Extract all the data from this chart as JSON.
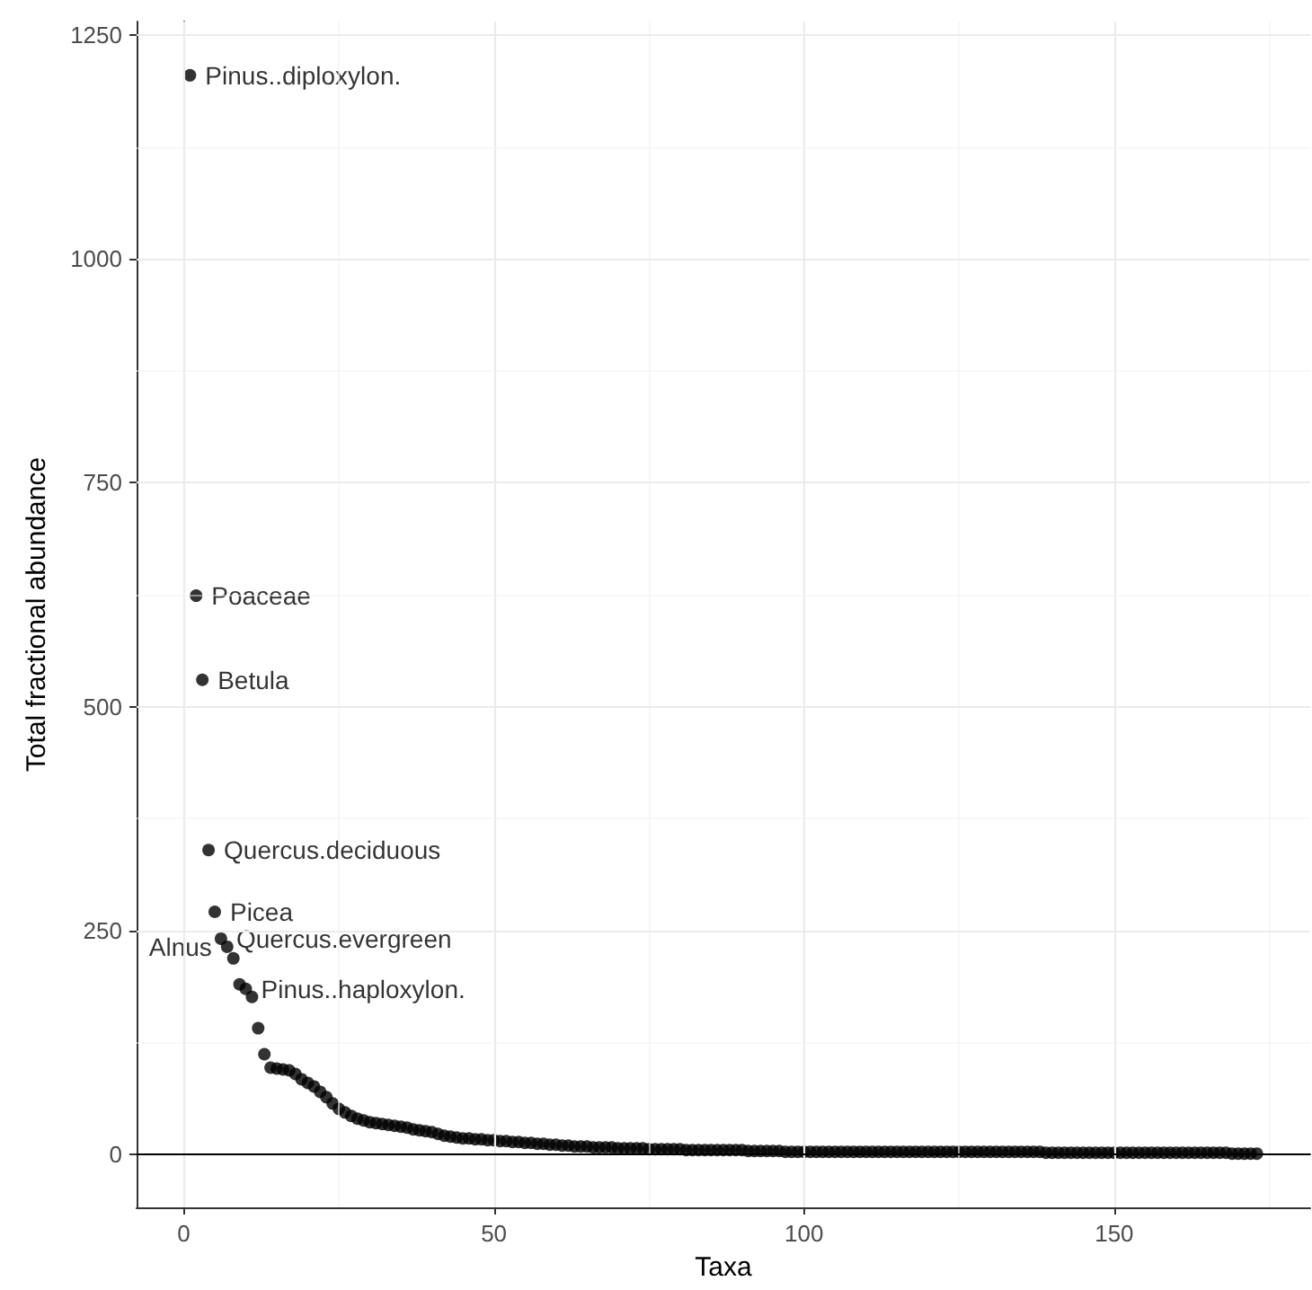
{
  "chart_data": {
    "type": "scatter",
    "xlabel": "Taxa",
    "ylabel": "Total fractional abundance",
    "x": [
      1,
      2,
      3,
      4,
      5,
      6,
      7,
      8,
      9,
      10,
      11,
      12,
      13,
      14,
      15,
      16,
      17,
      18,
      19,
      20,
      21,
      22,
      23,
      24,
      25,
      26,
      27,
      28,
      29,
      30,
      31,
      32,
      33,
      34,
      35,
      36,
      37,
      38,
      39,
      40,
      41,
      42,
      43,
      44,
      45,
      46,
      47,
      48,
      49,
      50,
      51,
      52,
      53,
      54,
      55,
      56,
      57,
      58,
      59,
      60,
      61,
      62,
      63,
      64,
      65,
      66,
      67,
      68,
      69,
      70,
      71,
      72,
      73,
      74,
      75,
      76,
      77,
      78,
      79,
      80,
      81,
      82,
      83,
      84,
      85,
      86,
      87,
      88,
      89,
      90,
      91,
      92,
      93,
      94,
      95,
      96,
      97,
      98,
      99,
      100,
      101,
      102,
      103,
      104,
      105,
      106,
      107,
      108,
      109,
      110,
      111,
      112,
      113,
      114,
      115,
      116,
      117,
      118,
      119,
      120,
      121,
      122,
      123,
      124,
      125,
      126,
      127,
      128,
      129,
      130,
      131,
      132,
      133,
      134,
      135,
      136,
      137,
      138,
      139,
      140,
      141,
      142,
      143,
      144,
      145,
      146,
      147,
      148,
      149,
      150,
      151,
      152,
      153,
      154,
      155,
      156,
      157,
      158,
      159,
      160,
      161,
      162,
      163,
      164,
      165,
      166,
      167,
      168,
      169,
      170,
      171,
      172,
      173
    ],
    "values": [
      1205,
      624,
      530,
      340,
      271,
      241,
      232,
      219,
      190,
      185,
      176,
      141,
      112,
      97,
      96,
      95,
      94,
      90,
      84,
      80,
      76,
      70,
      64,
      57,
      51,
      47,
      43,
      40,
      38,
      36,
      35,
      34,
      33,
      32,
      31,
      30,
      28,
      27,
      26,
      25,
      23,
      21,
      20,
      19,
      18,
      18,
      17,
      17,
      16,
      16,
      15,
      15,
      14,
      14,
      13,
      13,
      12,
      12,
      11,
      11,
      10,
      10,
      9,
      9,
      9,
      8,
      8,
      8,
      8,
      7,
      7,
      7,
      7,
      7,
      6,
      6,
      6,
      6,
      6,
      6,
      5,
      5,
      5,
      5,
      5,
      5,
      5,
      5,
      5,
      5,
      4,
      4,
      4,
      4,
      4,
      4,
      3,
      3,
      3,
      3,
      3,
      3,
      3,
      3,
      3,
      3,
      3,
      3,
      3,
      3,
      3,
      3,
      3,
      3,
      3,
      3,
      3,
      3,
      3,
      3,
      3,
      3,
      3,
      3,
      3,
      3,
      3,
      3,
      3,
      3,
      3,
      3,
      3,
      3,
      3,
      3,
      3,
      3,
      2,
      2,
      2,
      2,
      2,
      2,
      2,
      2,
      2,
      2,
      2,
      2,
      2,
      2,
      2,
      2,
      2,
      2,
      2,
      2,
      2,
      2,
      2,
      2,
      2,
      2,
      2,
      2,
      2,
      2,
      1,
      1,
      1,
      1,
      1
    ],
    "color": "#000000",
    "marker": "circle",
    "xlim": [
      -7.6,
      181.6
    ],
    "xticks": [
      0,
      50,
      100,
      150
    ],
    "ylim": [
      -59,
      1265
    ],
    "yticks": [
      0,
      250,
      500,
      750,
      1000,
      1250
    ],
    "grid": true,
    "ref_lines": [
      {
        "axis": "y",
        "value": 0,
        "color": "#000000"
      }
    ],
    "annotations": [
      {
        "text": "Pinus..diploxylon.",
        "x": 1,
        "y": 1205
      },
      {
        "text": "Poaceae",
        "x": 2,
        "y": 624
      },
      {
        "text": "Betula",
        "x": 3,
        "y": 530
      },
      {
        "text": "Quercus.deciduous",
        "x": 4,
        "y": 340
      },
      {
        "text": "Picea",
        "x": 5,
        "y": 271
      },
      {
        "text": "Quercus.evergreen",
        "x": 6,
        "y": 241
      },
      {
        "text": "Alnus",
        "x": 7,
        "y": 232
      },
      {
        "text": "Pinus..haploxylon.",
        "x": 10,
        "y": 185
      }
    ]
  }
}
